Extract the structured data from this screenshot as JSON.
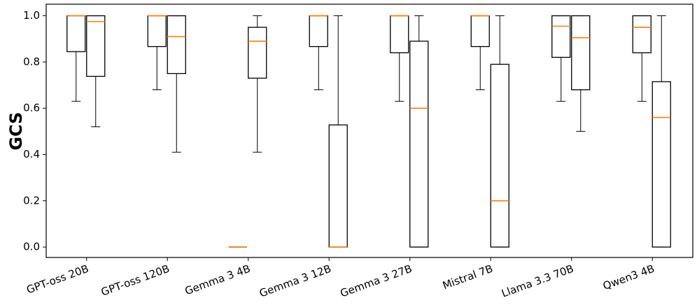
{
  "chart_data": {
    "type": "box",
    "ylabel": "GCS",
    "xlabel": "",
    "title": "",
    "ylim": [
      -0.045,
      1.05
    ],
    "yticks": [
      0.0,
      0.2,
      0.4,
      0.6,
      0.8,
      1.0
    ],
    "ytick_labels": [
      "0.0",
      "0.2",
      "0.4",
      "0.6",
      "0.8",
      "1.0"
    ],
    "categories": [
      "GPT-oss 20B",
      "GPT-oss 120B",
      "Gemma 3 4B",
      "Gemma 3 12B",
      "Gemma 3 27B",
      "Mistral 7B",
      "Llama 3.3 70B",
      "Qwen3 4B"
    ],
    "grid": false,
    "legend": "none",
    "colors": {
      "box": "#000000",
      "median": "#ff7f0e",
      "axes": "#000000"
    },
    "series": [
      {
        "values": [
          {
            "min": 0.63,
            "q1": 0.845,
            "median": 1.0,
            "q3": 1.0,
            "max": 1.0
          },
          {
            "min": 0.68,
            "q1": 0.867,
            "median": 1.0,
            "q3": 1.0,
            "max": 1.0
          },
          null,
          {
            "min": 0.68,
            "q1": 0.867,
            "median": 1.0,
            "q3": 1.0,
            "max": 1.0
          },
          {
            "min": 0.63,
            "q1": 0.84,
            "median": 1.0,
            "q3": 1.0,
            "max": 1.0
          },
          {
            "min": 0.68,
            "q1": 0.867,
            "median": 1.0,
            "q3": 1.0,
            "max": 1.0
          },
          {
            "min": 0.63,
            "q1": 0.82,
            "median": 0.955,
            "q3": 1.0,
            "max": 1.0
          },
          {
            "min": 0.63,
            "q1": 0.84,
            "median": 0.95,
            "q3": 1.0,
            "max": 1.0
          }
        ]
      },
      {
        "values": [
          {
            "min": 0.52,
            "q1": 0.738,
            "median": 0.975,
            "q3": 1.0,
            "max": 1.0
          },
          {
            "min": 0.41,
            "q1": 0.75,
            "median": 0.91,
            "q3": 1.0,
            "max": 1.0
          },
          {
            "min": 0.41,
            "q1": 0.73,
            "median": 0.89,
            "q3": 0.95,
            "max": 1.0
          },
          {
            "min": 0.0,
            "q1": 0.0,
            "median": 0.0,
            "q3": 0.528,
            "max": 1.0
          },
          {
            "min": 0.0,
            "q1": 0.0,
            "median": 0.6,
            "q3": 0.89,
            "max": 1.0
          },
          {
            "min": 0.0,
            "q1": 0.0,
            "median": 0.2,
            "q3": 0.79,
            "max": 1.0
          },
          {
            "min": 0.5,
            "q1": 0.68,
            "median": 0.905,
            "q3": 1.0,
            "max": 1.0
          },
          {
            "min": 0.0,
            "q1": 0.0,
            "median": 0.56,
            "q3": 0.715,
            "max": 1.0
          }
        ]
      }
    ],
    "extra_marks": [
      {
        "category": "Gemma 3 4B",
        "series": 0,
        "value": 0.0,
        "note": "flat box at 0"
      }
    ]
  }
}
